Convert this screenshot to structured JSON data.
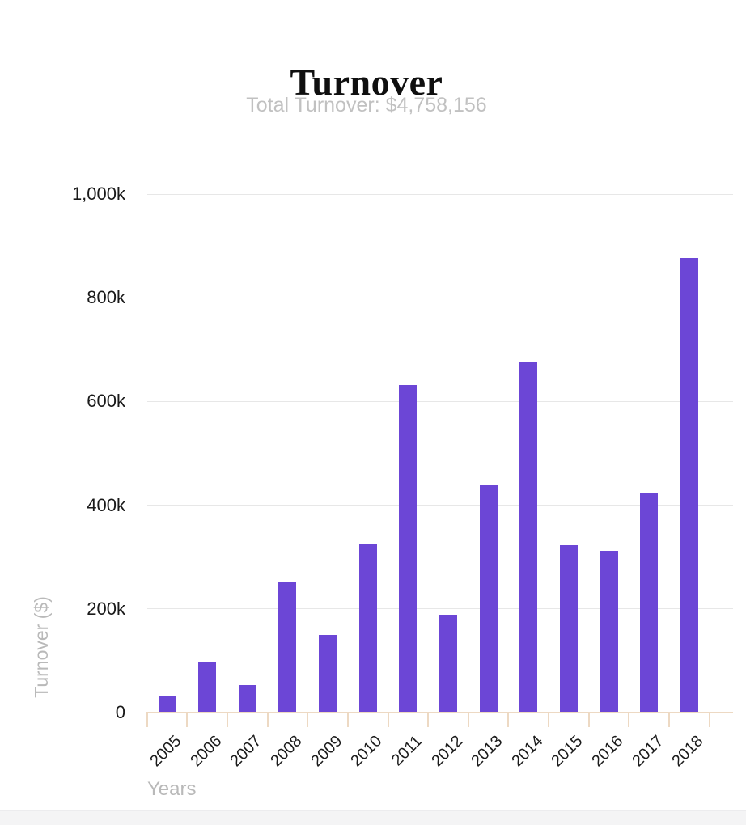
{
  "chart_data": {
    "type": "bar",
    "title": "Turnover",
    "subtitle": "Total Turnover: $4,758,156",
    "categories": [
      "2005",
      "2006",
      "2007",
      "2008",
      "2009",
      "2010",
      "2011",
      "2012",
      "2013",
      "2014",
      "2015",
      "2016",
      "2017",
      "2018"
    ],
    "values": [
      30156,
      97000,
      51000,
      250000,
      148000,
      325000,
      630000,
      187000,
      437000,
      674000,
      322000,
      310000,
      422000,
      875000
    ],
    "total": "$4,758,156",
    "xlabel": "Years",
    "ylabel": "Turnover ($)",
    "ylim": [
      0,
      1000000
    ],
    "ytick_interval": 200000,
    "ytick_labels": [
      "0",
      "200k",
      "400k",
      "600k",
      "800k",
      "1,000k"
    ],
    "legend": "none",
    "grid": "horizontal",
    "colors": {
      "bar": "#6c46d6",
      "axis_line": "#edd9c3",
      "gridline": "#e7e7e7",
      "tick_label": "#1a1a1a",
      "title": "#0f0f0f",
      "subtitle": "#c1c1c1",
      "axis_title": "#b9b9b9",
      "footer_strip": "#f4f4f5",
      "background": "#ffffff"
    }
  }
}
